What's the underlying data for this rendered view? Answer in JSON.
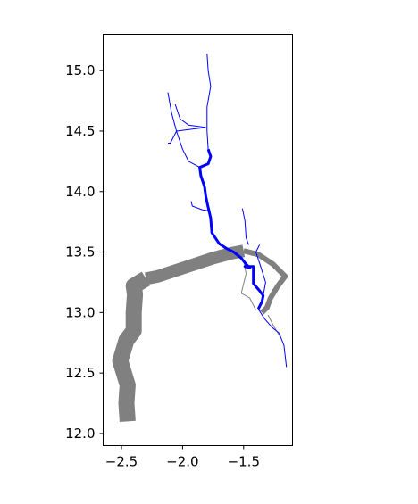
{
  "chart_data": {
    "type": "line",
    "title": "",
    "xlabel": "",
    "ylabel": "",
    "xlim": [
      -2.65,
      -1.1
    ],
    "ylim": [
      11.9,
      15.3
    ],
    "grid": false,
    "legend": "none",
    "x_ticks": [
      -2.5,
      -2.0,
      -1.5
    ],
    "x_tick_labels": [
      "−2.5",
      "−2.0",
      "−1.5"
    ],
    "y_ticks": [
      12.0,
      12.5,
      13.0,
      13.5,
      14.0,
      14.5,
      15.0
    ],
    "y_tick_labels": [
      "12.0",
      "12.5",
      "13.0",
      "13.5",
      "14.0",
      "14.5",
      "15.0"
    ],
    "colors": {
      "blue_network": "#0000ff",
      "gray_network": "#808080",
      "axes": "#000000"
    },
    "series": [
      {
        "color": "#808080",
        "width": 18,
        "points": [
          [
            -2.45,
            12.1
          ],
          [
            -2.46,
            12.25
          ],
          [
            -2.45,
            12.4
          ],
          [
            -2.51,
            12.6
          ],
          [
            -2.46,
            12.77
          ],
          [
            -2.4,
            12.85
          ],
          [
            -2.4,
            13.0
          ],
          [
            -2.39,
            13.15
          ],
          [
            -2.4,
            13.22
          ],
          [
            -2.3,
            13.28
          ]
        ]
      },
      {
        "color": "#808080",
        "width": 14,
        "points": [
          [
            -2.3,
            13.28
          ],
          [
            -2.2,
            13.3
          ],
          [
            -2.05,
            13.35
          ],
          [
            -1.9,
            13.4
          ],
          [
            -1.75,
            13.45
          ],
          [
            -1.6,
            13.49
          ],
          [
            -1.5,
            13.51
          ]
        ]
      },
      {
        "color": "#808080",
        "width": 6,
        "points": [
          [
            -1.5,
            13.51
          ],
          [
            -1.38,
            13.48
          ],
          [
            -1.26,
            13.4
          ],
          [
            -1.16,
            13.3
          ],
          [
            -1.22,
            13.22
          ],
          [
            -1.28,
            13.12
          ],
          [
            -1.31,
            13.04
          ],
          [
            -1.35,
            13.0
          ]
        ]
      },
      {
        "color": "#808080",
        "width": 1,
        "points": [
          [
            -1.5,
            13.44
          ],
          [
            -1.48,
            13.32
          ],
          [
            -1.52,
            13.16
          ],
          [
            -1.45,
            13.12
          ],
          [
            -1.4,
            13.02
          ]
        ]
      },
      {
        "color": "#808080",
        "width": 1,
        "points": [
          [
            -1.3,
            12.98
          ],
          [
            -1.25,
            12.88
          ],
          [
            -1.2,
            12.8
          ]
        ]
      },
      {
        "color": "#0000ff",
        "width": 3,
        "points": [
          [
            -1.79,
            14.35
          ],
          [
            -1.77,
            14.29
          ],
          [
            -1.79,
            14.23
          ],
          [
            -1.86,
            14.2
          ],
          [
            -1.85,
            14.13
          ],
          [
            -1.82,
            14.04
          ],
          [
            -1.81,
            13.96
          ],
          [
            -1.79,
            13.87
          ],
          [
            -1.77,
            13.78
          ],
          [
            -1.76,
            13.66
          ],
          [
            -1.7,
            13.57
          ],
          [
            -1.64,
            13.53
          ],
          [
            -1.58,
            13.5
          ],
          [
            -1.52,
            13.45
          ],
          [
            -1.48,
            13.4
          ],
          [
            -1.45,
            13.37
          ],
          [
            -1.49,
            13.38
          ],
          [
            -1.42,
            13.38
          ],
          [
            -1.42,
            13.24
          ],
          [
            -1.37,
            13.18
          ],
          [
            -1.34,
            13.14
          ],
          [
            -1.35,
            13.09
          ],
          [
            -1.38,
            13.03
          ]
        ]
      },
      {
        "color": "#0000ff",
        "width": 1,
        "points": [
          [
            -1.79,
            14.35
          ],
          [
            -1.8,
            14.5
          ],
          [
            -1.8,
            14.7
          ],
          [
            -1.77,
            14.87
          ],
          [
            -1.79,
            15.0
          ],
          [
            -1.8,
            15.14
          ]
        ]
      },
      {
        "color": "#0000ff",
        "width": 1,
        "points": [
          [
            -2.12,
            14.82
          ],
          [
            -2.09,
            14.65
          ],
          [
            -2.05,
            14.5
          ],
          [
            -2.0,
            14.35
          ],
          [
            -1.95,
            14.25
          ],
          [
            -1.86,
            14.2
          ]
        ]
      },
      {
        "color": "#0000ff",
        "width": 1,
        "points": [
          [
            -2.06,
            14.72
          ],
          [
            -2.02,
            14.6
          ],
          [
            -1.95,
            14.55
          ],
          [
            -1.81,
            14.53
          ]
        ]
      },
      {
        "color": "#0000ff",
        "width": 1,
        "points": [
          [
            -2.05,
            14.5
          ],
          [
            -1.81,
            14.53
          ]
        ]
      },
      {
        "color": "#0000ff",
        "width": 1,
        "points": [
          [
            -2.05,
            14.5
          ],
          [
            -2.1,
            14.4
          ],
          [
            -2.12,
            14.4
          ]
        ]
      },
      {
        "color": "#0000ff",
        "width": 1,
        "points": [
          [
            -1.93,
            13.92
          ],
          [
            -1.92,
            13.88
          ],
          [
            -1.84,
            13.85
          ],
          [
            -1.78,
            13.84
          ]
        ]
      },
      {
        "color": "#0000ff",
        "width": 1,
        "points": [
          [
            -1.51,
            13.86
          ],
          [
            -1.49,
            13.76
          ],
          [
            -1.48,
            13.62
          ],
          [
            -1.46,
            13.56
          ]
        ]
      },
      {
        "color": "#0000ff",
        "width": 1,
        "points": [
          [
            -1.38,
            13.03
          ],
          [
            -1.33,
            12.95
          ],
          [
            -1.27,
            12.88
          ],
          [
            -1.21,
            12.83
          ],
          [
            -1.17,
            12.73
          ],
          [
            -1.15,
            12.55
          ]
        ]
      },
      {
        "color": "#0000ff",
        "width": 1,
        "points": [
          [
            -1.34,
            13.14
          ],
          [
            -1.32,
            13.25
          ],
          [
            -1.36,
            13.38
          ],
          [
            -1.4,
            13.5
          ],
          [
            -1.37,
            13.56
          ]
        ]
      }
    ]
  }
}
